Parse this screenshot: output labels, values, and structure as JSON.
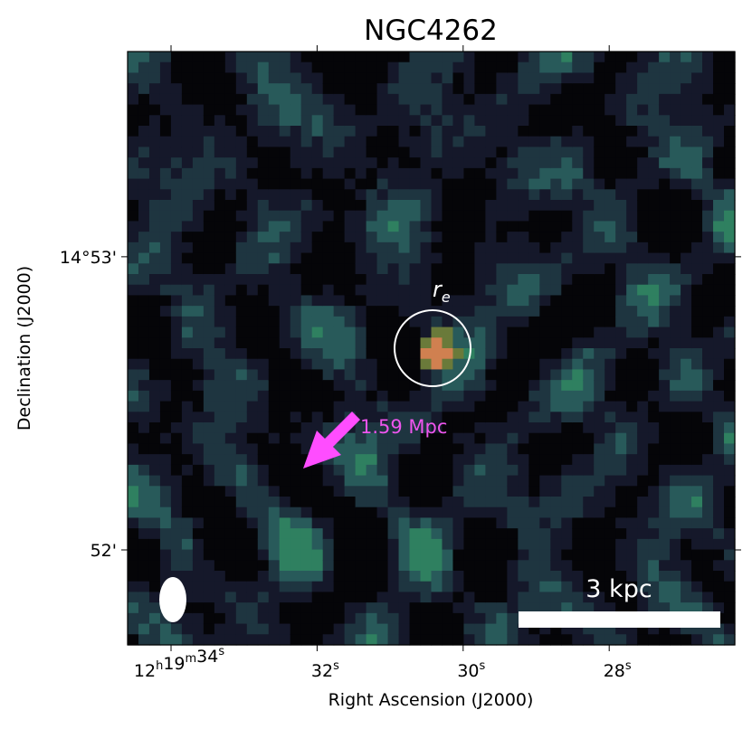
{
  "chart_data": {
    "type": "image",
    "title": "NGC4262",
    "xlabel": "Right Ascension (J2000)",
    "ylabel": "Declination (J2000)",
    "xlim": [
      34.595,
      26.28
    ],
    "xticks": [
      {
        "value": 34,
        "label": "12h19m34s"
      },
      {
        "value": 32,
        "label": "32s"
      },
      {
        "value": 30,
        "label": "30s"
      },
      {
        "value": 28,
        "label": "28s"
      }
    ],
    "ylim": [
      51.676,
      53.7
    ],
    "yticks": [
      {
        "value": 53,
        "label": "14°53'"
      },
      {
        "value": 52,
        "label": "52'"
      }
    ],
    "annotations": {
      "radius": "re",
      "distance": "1.59 Mpc",
      "scale_bar": "3 kpc"
    }
  }
}
